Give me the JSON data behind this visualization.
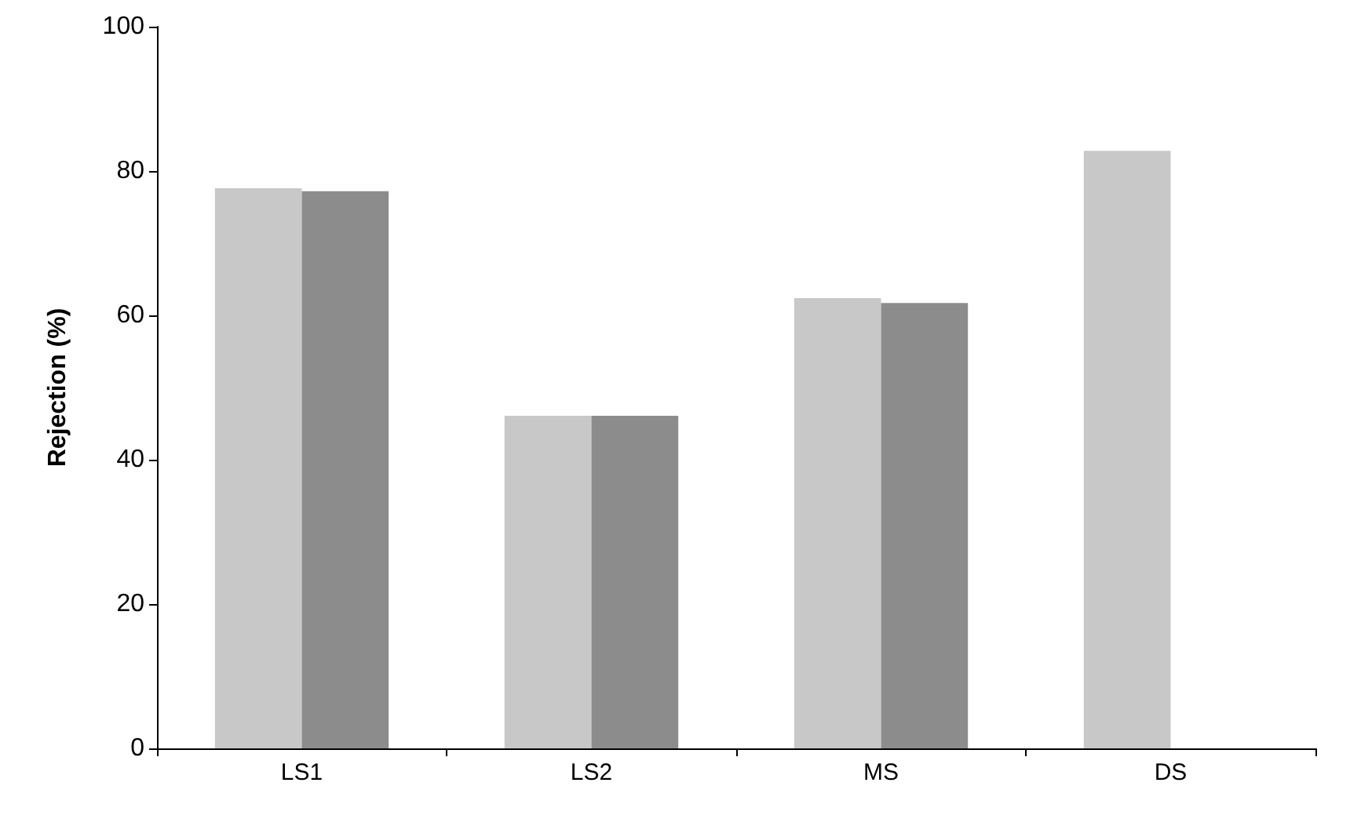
{
  "chart_data": {
    "type": "bar",
    "ylabel": "Rejection (%)",
    "categories": [
      "LS1",
      "LS2",
      "MS",
      "DS"
    ],
    "series": [
      {
        "color": "#c8c8c8",
        "values": [
          77.6,
          46.1,
          62.4,
          82.8
        ]
      },
      {
        "color": "#8c8c8c",
        "values": [
          77.2,
          46.1,
          61.7,
          null
        ]
      }
    ],
    "ylim": [
      0,
      100
    ],
    "yticks": [
      0,
      20,
      40,
      60,
      80,
      100
    ],
    "grid": false
  }
}
